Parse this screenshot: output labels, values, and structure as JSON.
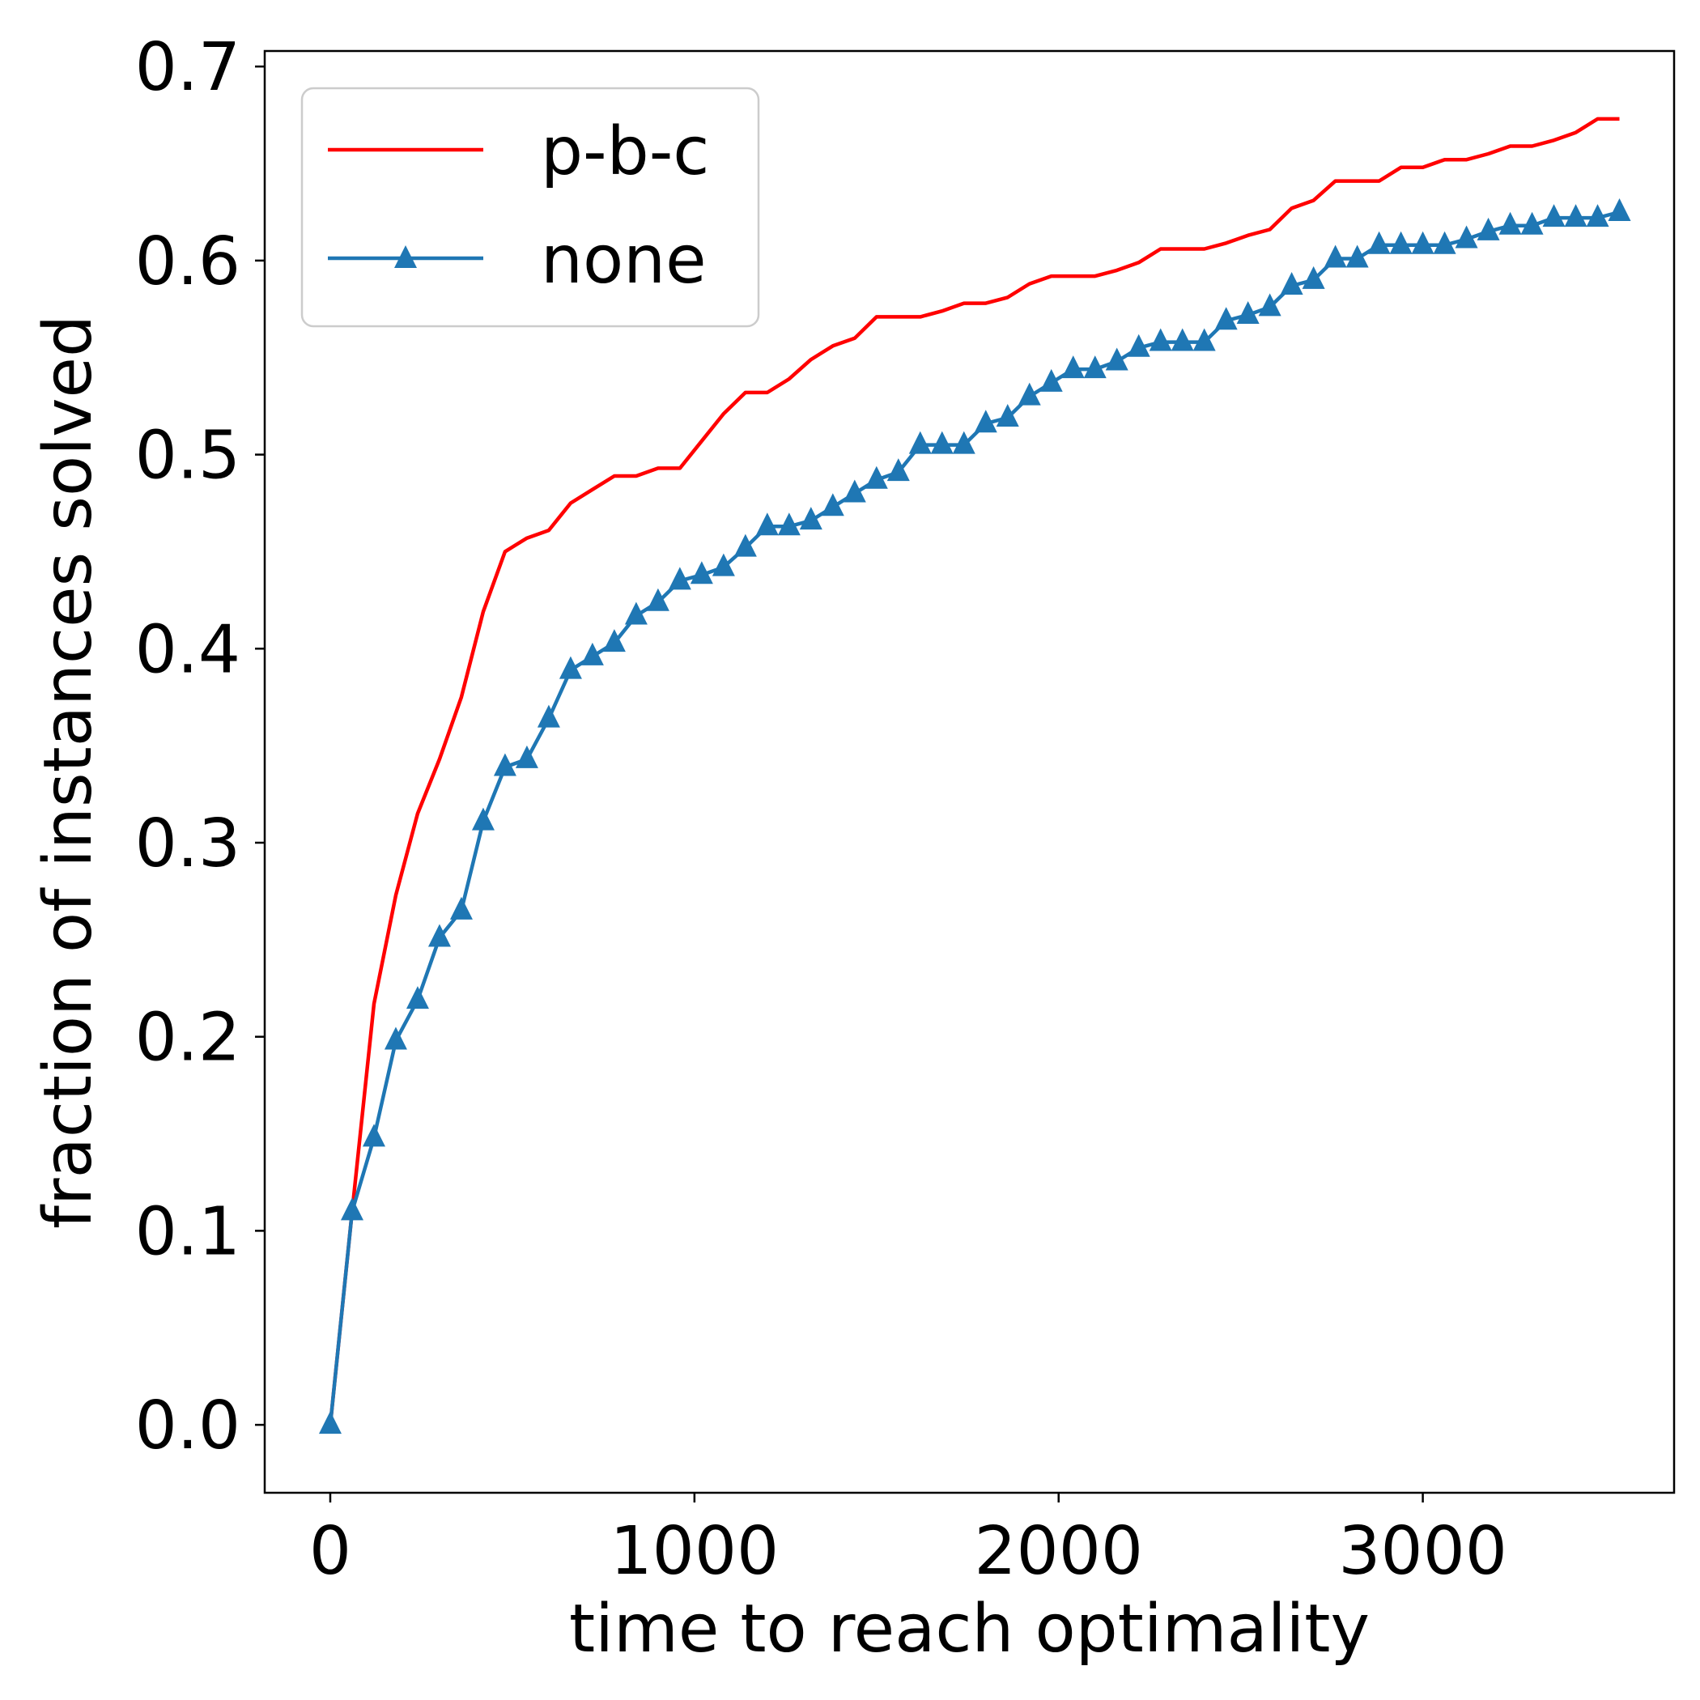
{
  "chart_data": {
    "type": "line",
    "title": "",
    "xlabel": "time to reach optimality",
    "ylabel": "fraction of instances solved",
    "xlim": [
      -180,
      3690
    ],
    "ylim": [
      -0.035,
      0.708
    ],
    "xticks": [
      0,
      1000,
      2000,
      3000
    ],
    "xtick_labels": [
      "0",
      "1000",
      "2000",
      "3000"
    ],
    "yticks": [
      0.0,
      0.1,
      0.2,
      0.3,
      0.4,
      0.5,
      0.6,
      0.7
    ],
    "ytick_labels": [
      "0.0",
      "0.1",
      "0.2",
      "0.3",
      "0.4",
      "0.5",
      "0.6",
      "0.7"
    ],
    "grid": false,
    "legend_position": "top-left",
    "series": [
      {
        "name": "p-b-c",
        "color": "#ff0000",
        "marker": "none",
        "x": [
          0,
          60,
          120,
          180,
          240,
          300,
          360,
          420,
          480,
          540,
          600,
          660,
          720,
          780,
          840,
          900,
          960,
          1020,
          1080,
          1140,
          1200,
          1260,
          1320,
          1380,
          1440,
          1500,
          1560,
          1620,
          1680,
          1740,
          1800,
          1860,
          1920,
          1980,
          2040,
          2100,
          2160,
          2220,
          2280,
          2340,
          2400,
          2460,
          2520,
          2580,
          2640,
          2700,
          2760,
          2820,
          2880,
          2940,
          3000,
          3060,
          3120,
          3180,
          3240,
          3300,
          3360,
          3420,
          3480,
          3540
        ],
        "y": [
          0.0,
          0.11,
          0.217,
          0.273,
          0.315,
          0.343,
          0.375,
          0.419,
          0.45,
          0.457,
          0.461,
          0.475,
          0.482,
          0.489,
          0.489,
          0.493,
          0.493,
          0.507,
          0.521,
          0.532,
          0.532,
          0.539,
          0.549,
          0.556,
          0.56,
          0.571,
          0.571,
          0.571,
          0.574,
          0.578,
          0.578,
          0.581,
          0.588,
          0.592,
          0.592,
          0.592,
          0.595,
          0.599,
          0.606,
          0.606,
          0.606,
          0.609,
          0.613,
          0.616,
          0.627,
          0.631,
          0.641,
          0.641,
          0.641,
          0.648,
          0.648,
          0.652,
          0.652,
          0.655,
          0.659,
          0.659,
          0.662,
          0.666,
          0.673,
          0.673
        ]
      },
      {
        "name": "none",
        "color": "#1f77b4",
        "marker": "triangle",
        "x": [
          0,
          60,
          120,
          180,
          240,
          300,
          360,
          420,
          480,
          540,
          600,
          660,
          720,
          780,
          840,
          900,
          960,
          1020,
          1080,
          1140,
          1200,
          1260,
          1320,
          1380,
          1440,
          1500,
          1560,
          1620,
          1680,
          1740,
          1800,
          1860,
          1920,
          1980,
          2040,
          2100,
          2160,
          2220,
          2280,
          2340,
          2400,
          2460,
          2520,
          2580,
          2640,
          2700,
          2760,
          2820,
          2880,
          2940,
          3000,
          3060,
          3120,
          3180,
          3240,
          3300,
          3360,
          3420,
          3480,
          3540
        ],
        "y": [
          0.0,
          0.11,
          0.148,
          0.198,
          0.219,
          0.251,
          0.265,
          0.311,
          0.339,
          0.343,
          0.364,
          0.389,
          0.396,
          0.403,
          0.417,
          0.424,
          0.435,
          0.438,
          0.442,
          0.452,
          0.463,
          0.463,
          0.466,
          0.473,
          0.48,
          0.487,
          0.491,
          0.505,
          0.505,
          0.505,
          0.516,
          0.519,
          0.53,
          0.537,
          0.544,
          0.544,
          0.548,
          0.555,
          0.558,
          0.558,
          0.558,
          0.569,
          0.572,
          0.576,
          0.587,
          0.59,
          0.601,
          0.601,
          0.608,
          0.608,
          0.608,
          0.608,
          0.611,
          0.615,
          0.618,
          0.618,
          0.622,
          0.622,
          0.622,
          0.625
        ]
      }
    ]
  }
}
